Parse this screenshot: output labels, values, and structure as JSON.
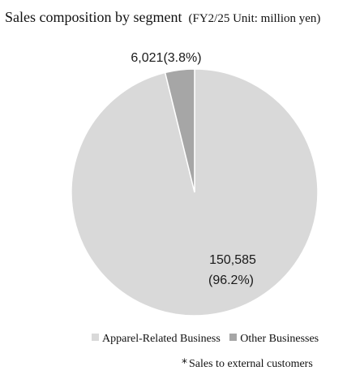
{
  "chart_data": {
    "type": "pie",
    "title": "Sales composition by segment",
    "subtitle": "(FY2/25 Unit: million yen)",
    "slices": [
      {
        "name": "Apparel-Related Business",
        "value": 150585,
        "percent": 96.2,
        "label": "150,585",
        "label_pct": "(96.2%)",
        "color": "#d9d9d9"
      },
      {
        "name": "Other Businesses",
        "value": 6021,
        "percent": 3.8,
        "label": "6,021(3.8%)",
        "color": "#a6a6a6"
      }
    ],
    "legend": {
      "placement": "bottom"
    },
    "footnote_mark": "*",
    "footnote": "Sales to external customers"
  }
}
